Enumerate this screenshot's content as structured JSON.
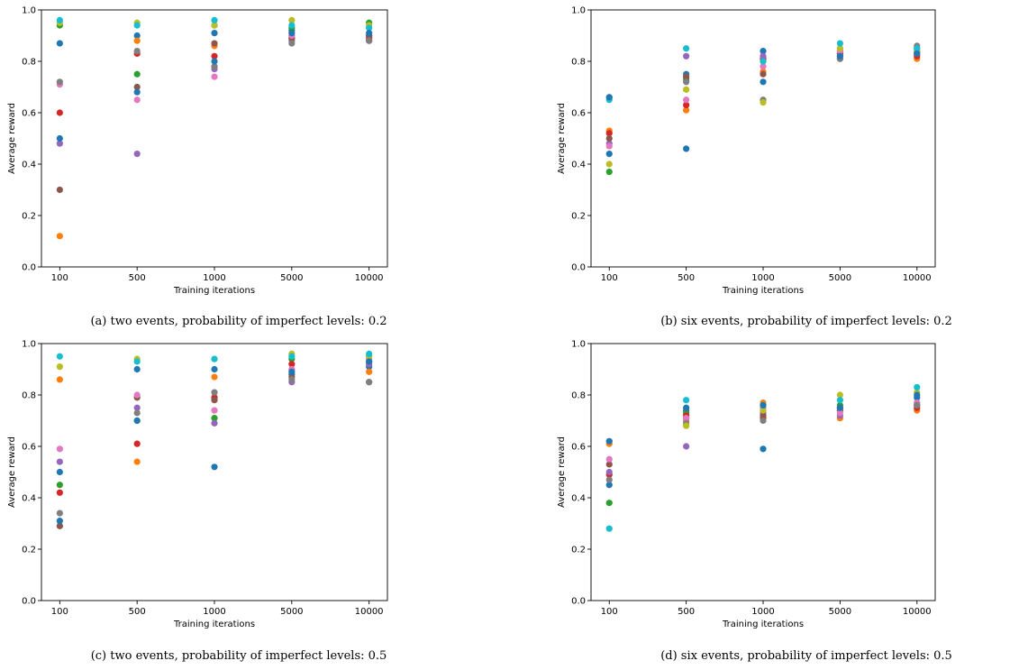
{
  "colors": [
    "#1f77b4",
    "#ff7f0e",
    "#2ca02c",
    "#d62728",
    "#9467bd",
    "#8c564b",
    "#e377c2",
    "#7f7f7f",
    "#bcbd22",
    "#17becf"
  ],
  "chart_data": [
    {
      "type": "scatter",
      "caption": "(a) two events, probability of imperfect levels: 0.2",
      "xlabel": "Training iterations",
      "ylabel": "Average reward",
      "categories": [
        "100",
        "500",
        "1000",
        "5000",
        "10000"
      ],
      "yticks": [
        "0.0",
        "0.2",
        "0.4",
        "0.6",
        "0.8",
        "1.0"
      ],
      "ylim": [
        0,
        1
      ],
      "grid": false,
      "series": [
        {
          "values": [
            0.87,
            0.9,
            0.91,
            0.92,
            0.9
          ]
        },
        {
          "values": [
            0.12,
            0.88,
            0.86,
            0.89,
            0.88
          ]
        },
        {
          "values": [
            0.94,
            0.75,
            0.94,
            0.93,
            0.95
          ]
        },
        {
          "values": [
            0.6,
            0.83,
            0.82,
            0.9,
            0.89
          ]
        },
        {
          "values": [
            0.48,
            0.44,
            0.77,
            0.88,
            0.9
          ]
        },
        {
          "values": [
            0.3,
            0.7,
            0.87,
            0.89,
            0.9
          ]
        },
        {
          "values": [
            0.71,
            0.65,
            0.74,
            0.9,
            0.88
          ]
        },
        {
          "values": [
            0.72,
            0.84,
            0.78,
            0.87,
            0.88
          ]
        },
        {
          "values": [
            0.95,
            0.95,
            0.94,
            0.96,
            0.94
          ]
        },
        {
          "values": [
            0.96,
            0.94,
            0.96,
            0.94,
            0.93
          ]
        },
        {
          "values": [
            0.5,
            0.68,
            0.8,
            0.91,
            0.91
          ]
        }
      ]
    },
    {
      "type": "scatter",
      "caption": "(b) six events, probability of imperfect levels: 0.2",
      "xlabel": "Training iterations",
      "ylabel": "Average reward",
      "categories": [
        "100",
        "500",
        "1000",
        "5000",
        "10000"
      ],
      "yticks": [
        "0.0",
        "0.2",
        "0.4",
        "0.6",
        "0.8",
        "1.0"
      ],
      "ylim": [
        0,
        1
      ],
      "grid": false,
      "series": [
        {
          "values": [
            0.44,
            0.75,
            0.84,
            0.83,
            0.83
          ]
        },
        {
          "values": [
            0.53,
            0.61,
            0.76,
            0.85,
            0.81
          ]
        },
        {
          "values": [
            0.37,
            0.73,
            0.8,
            0.84,
            0.84
          ]
        },
        {
          "values": [
            0.52,
            0.63,
            0.81,
            0.83,
            0.82
          ]
        },
        {
          "values": [
            0.48,
            0.82,
            0.82,
            0.82,
            0.83
          ]
        },
        {
          "values": [
            0.5,
            0.74,
            0.75,
            0.81,
            0.84
          ]
        },
        {
          "values": [
            0.47,
            0.65,
            0.78,
            0.84,
            0.85
          ]
        },
        {
          "values": [
            0.66,
            0.72,
            0.65,
            0.81,
            0.86
          ]
        },
        {
          "values": [
            0.4,
            0.69,
            0.64,
            0.85,
            0.84
          ]
        },
        {
          "values": [
            0.65,
            0.85,
            0.8,
            0.87,
            0.85
          ]
        },
        {
          "values": [
            0.66,
            0.46,
            0.72,
            0.82,
            0.83
          ]
        }
      ]
    },
    {
      "type": "scatter",
      "caption": "(c) two events, probability of imperfect levels: 0.5",
      "xlabel": "Training iterations",
      "ylabel": "Average reward",
      "categories": [
        "100",
        "500",
        "1000",
        "5000",
        "10000"
      ],
      "yticks": [
        "0.0",
        "0.2",
        "0.4",
        "0.6",
        "0.8",
        "1.0"
      ],
      "ylim": [
        0,
        1
      ],
      "grid": false,
      "series": [
        {
          "values": [
            0.5,
            0.9,
            0.9,
            0.88,
            0.91
          ]
        },
        {
          "values": [
            0.86,
            0.54,
            0.87,
            0.9,
            0.89
          ]
        },
        {
          "values": [
            0.45,
            0.7,
            0.71,
            0.94,
            0.95
          ]
        },
        {
          "values": [
            0.42,
            0.61,
            0.79,
            0.92,
            0.93
          ]
        },
        {
          "values": [
            0.54,
            0.75,
            0.69,
            0.85,
            0.92
          ]
        },
        {
          "values": [
            0.29,
            0.79,
            0.78,
            0.87,
            0.85
          ]
        },
        {
          "values": [
            0.59,
            0.8,
            0.74,
            0.9,
            0.94
          ]
        },
        {
          "values": [
            0.34,
            0.73,
            0.81,
            0.86,
            0.85
          ]
        },
        {
          "values": [
            0.91,
            0.94,
            0.94,
            0.96,
            0.95
          ]
        },
        {
          "values": [
            0.95,
            0.93,
            0.94,
            0.95,
            0.96
          ]
        },
        {
          "values": [
            0.31,
            0.7,
            0.52,
            0.89,
            0.93
          ]
        }
      ]
    },
    {
      "type": "scatter",
      "caption": "(d) six events, probability of imperfect levels: 0.5",
      "xlabel": "Training iterations",
      "ylabel": "Average reward",
      "categories": [
        "100",
        "500",
        "1000",
        "5000",
        "10000"
      ],
      "yticks": [
        "0.0",
        "0.2",
        "0.4",
        "0.6",
        "0.8",
        "1.0"
      ],
      "ylim": [
        0,
        1
      ],
      "grid": false,
      "series": [
        {
          "values": [
            0.45,
            0.74,
            0.59,
            0.75,
            0.79
          ]
        },
        {
          "values": [
            0.61,
            0.7,
            0.77,
            0.71,
            0.74
          ]
        },
        {
          "values": [
            0.38,
            0.73,
            0.74,
            0.76,
            0.77
          ]
        },
        {
          "values": [
            0.49,
            0.72,
            0.71,
            0.74,
            0.75
          ]
        },
        {
          "values": [
            0.5,
            0.6,
            0.73,
            0.72,
            0.76
          ]
        },
        {
          "values": [
            0.53,
            0.71,
            0.72,
            0.74,
            0.76
          ]
        },
        {
          "values": [
            0.55,
            0.71,
            0.75,
            0.73,
            0.77
          ]
        },
        {
          "values": [
            0.47,
            0.69,
            0.7,
            0.75,
            0.76
          ]
        },
        {
          "values": [
            0.62,
            0.68,
            0.74,
            0.8,
            0.81
          ]
        },
        {
          "values": [
            0.28,
            0.78,
            0.76,
            0.78,
            0.83
          ]
        },
        {
          "values": [
            0.62,
            0.75,
            0.76,
            0.75,
            0.8
          ]
        }
      ]
    }
  ]
}
